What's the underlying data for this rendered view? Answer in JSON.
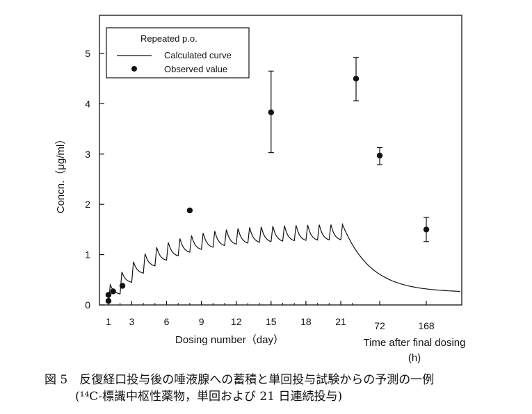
{
  "chart_data": {
    "type": "line",
    "ylabel": "Concn.（μg/ml）",
    "xlabel": "Dosing number（day）",
    "xlabel2": "Time after final dosing",
    "xlabel2_unit": "(h)",
    "ylim": [
      0,
      5.5
    ],
    "yticks": [
      "0",
      "1",
      "2",
      "3",
      "4",
      "5"
    ],
    "xticks_dose": [
      "1",
      "3",
      "6",
      "9",
      "12",
      "15",
      "18",
      "21"
    ],
    "xticks_time": [
      "72",
      "168"
    ],
    "legend": {
      "title": "Repeated p.o.",
      "calculated": "Calculated curve",
      "observed": "Observed value",
      "placement": "top-left"
    },
    "observed": [
      {
        "x": "1",
        "y": 0.08
      },
      {
        "x": "1",
        "y": 0.2
      },
      {
        "x": "1.4",
        "y": 0.27
      },
      {
        "x": "2.2",
        "y": 0.38
      },
      {
        "x": "8",
        "y": 1.88
      },
      {
        "x": "15",
        "y": 3.83,
        "err_low": 3.03,
        "err_high": 4.65
      },
      {
        "x": "22h",
        "y": 4.5,
        "err_low": 4.06,
        "err_high": 4.92
      },
      {
        "x": "72h",
        "y": 2.97,
        "err_low": 2.79,
        "err_high": 3.13
      },
      {
        "x": "168h",
        "y": 1.5,
        "err_low": 1.26,
        "err_high": 1.74
      }
    ],
    "calculated_curve": {
      "doses": 21,
      "peak_start": 0.4,
      "peak_end": 1.6,
      "trough_start": 0.22,
      "trough_end": 1.3,
      "final_level": 0.25
    }
  },
  "caption": {
    "line1": "図 5　反復経口投与後の唾液腺への蓄積と単回投与試験からの予測の一例",
    "line2": "(¹⁴C-標識中枢性薬物，単回および 21 日連続投与)"
  }
}
